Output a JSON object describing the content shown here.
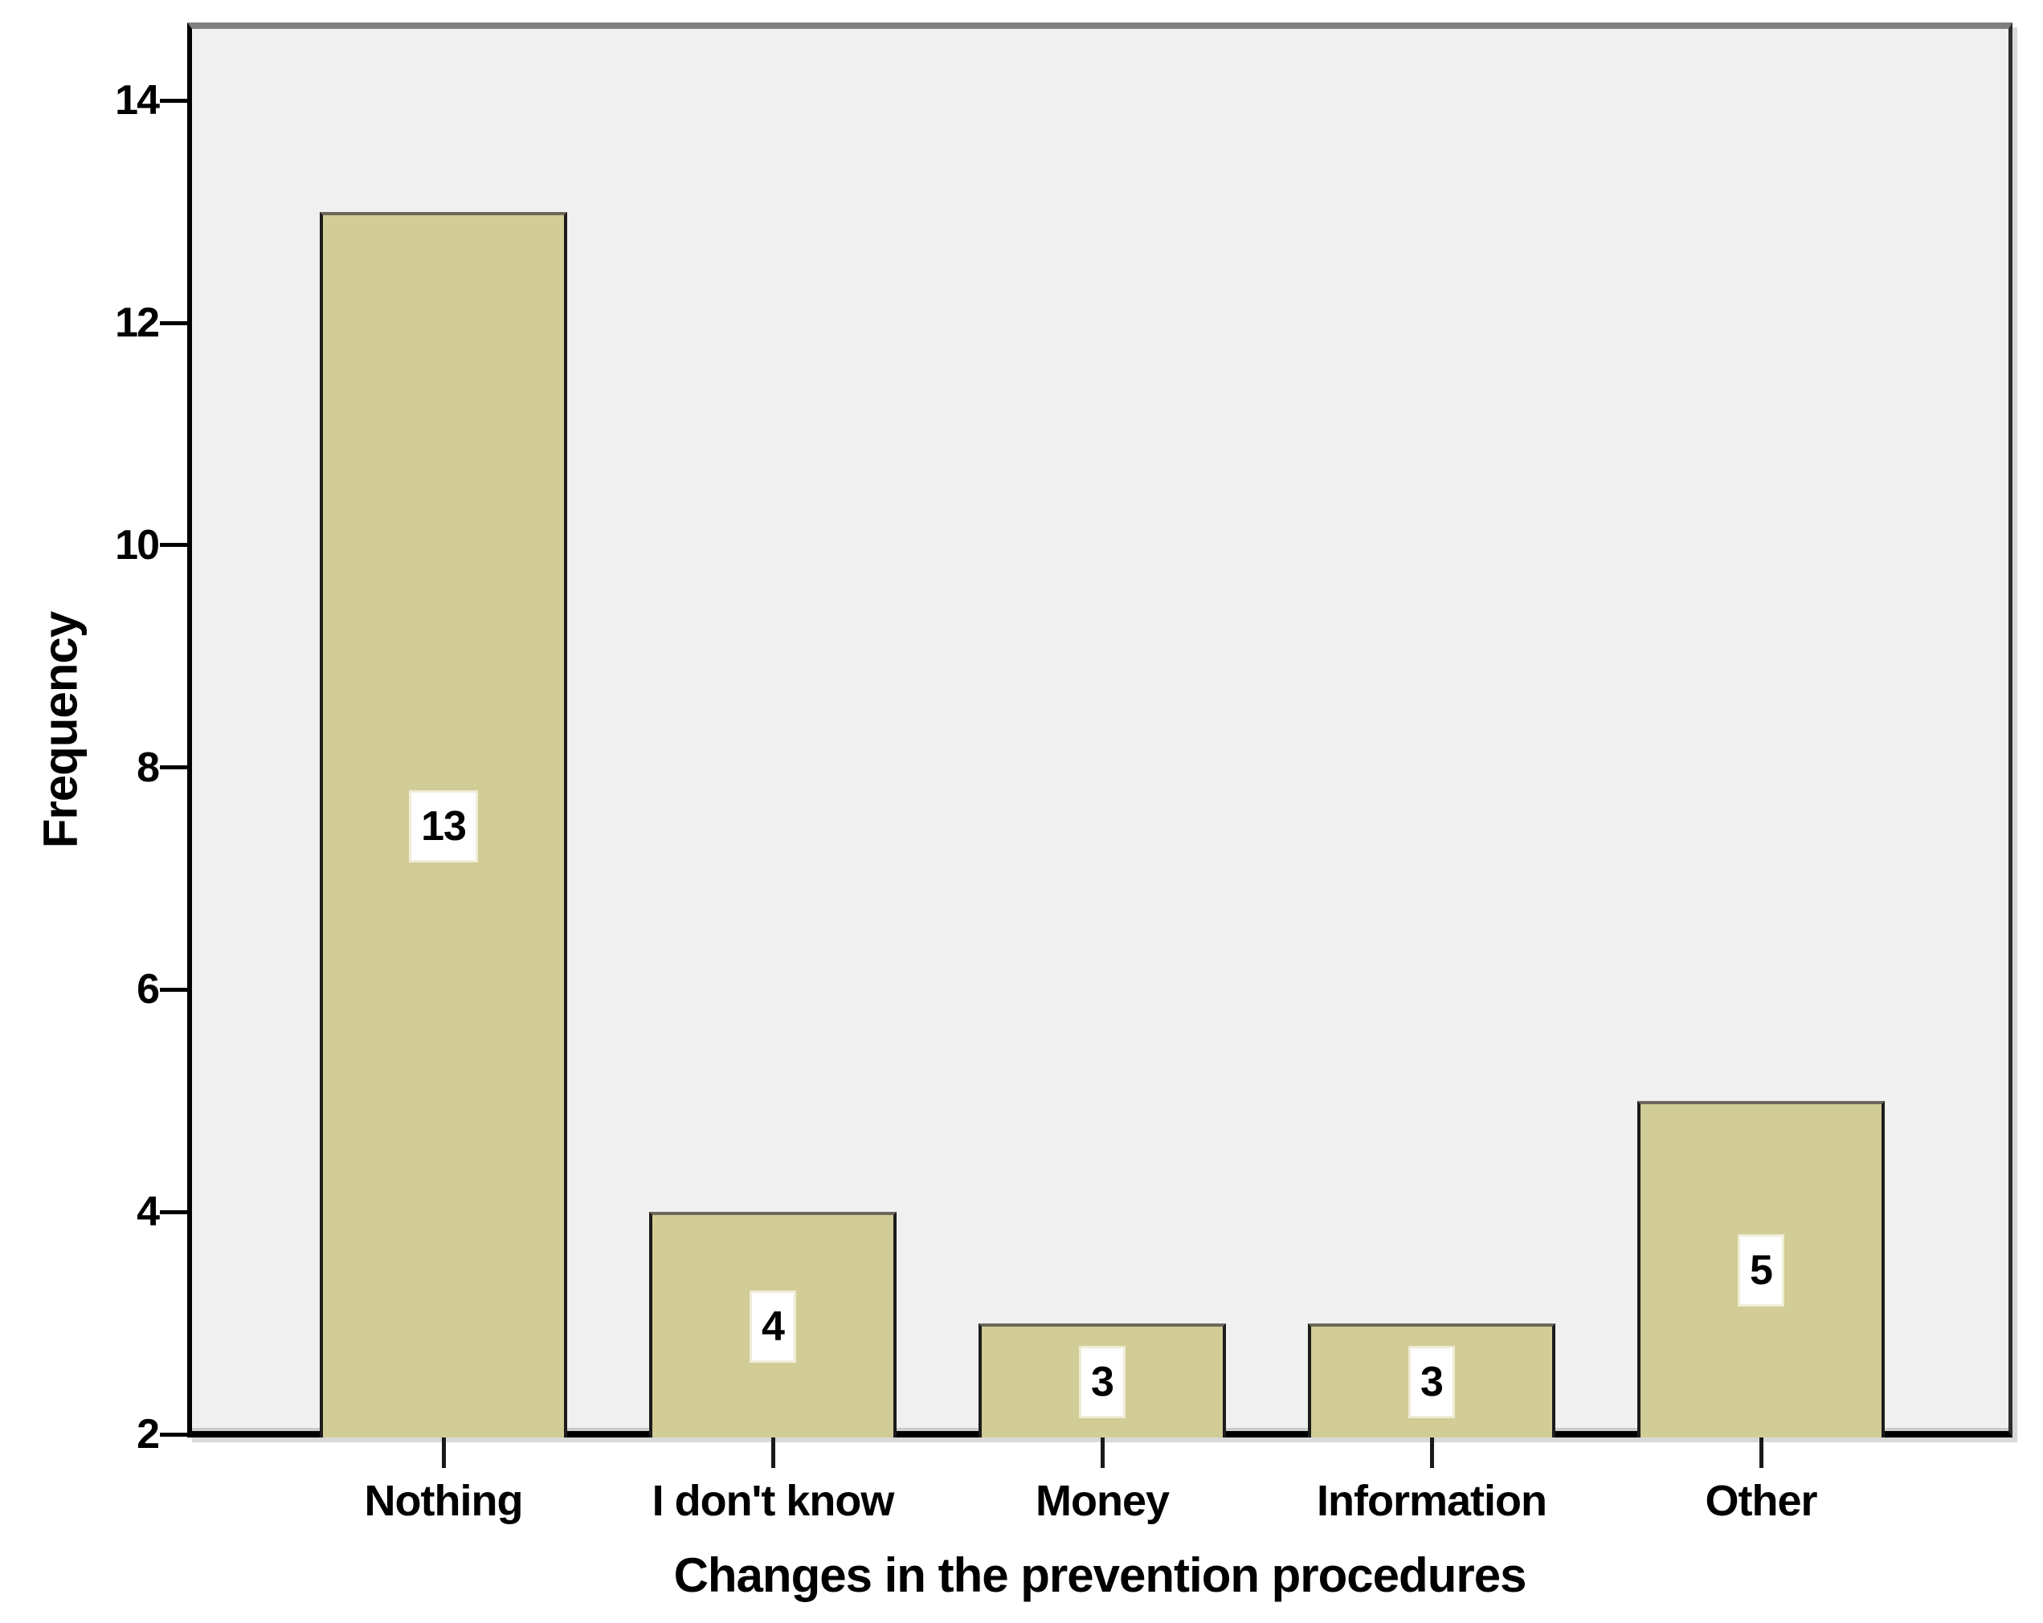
{
  "chart_data": {
    "type": "bar",
    "title": "",
    "xlabel": "Changes in the prevention procedures",
    "ylabel": "Frequency",
    "categories": [
      "Nothing",
      "I don't know",
      "Money",
      "Information",
      "Other"
    ],
    "values": [
      13,
      4,
      3,
      3,
      5
    ],
    "bar_labels": [
      "13",
      "4",
      "3",
      "3",
      "5"
    ],
    "ylim": [
      2,
      14
    ],
    "yticks": [
      2,
      4,
      6,
      8,
      10,
      12,
      14
    ],
    "grid": false,
    "legend_position": "none",
    "colors": {
      "bar_fill": "#d2cc96",
      "bar_border": "#1c1c1c",
      "plot_background": "#f0f0f0",
      "axis_line": "#000000",
      "frame_top": "#7f7f7f",
      "value_label_background": "#ffffff",
      "text": "#000000"
    }
  }
}
